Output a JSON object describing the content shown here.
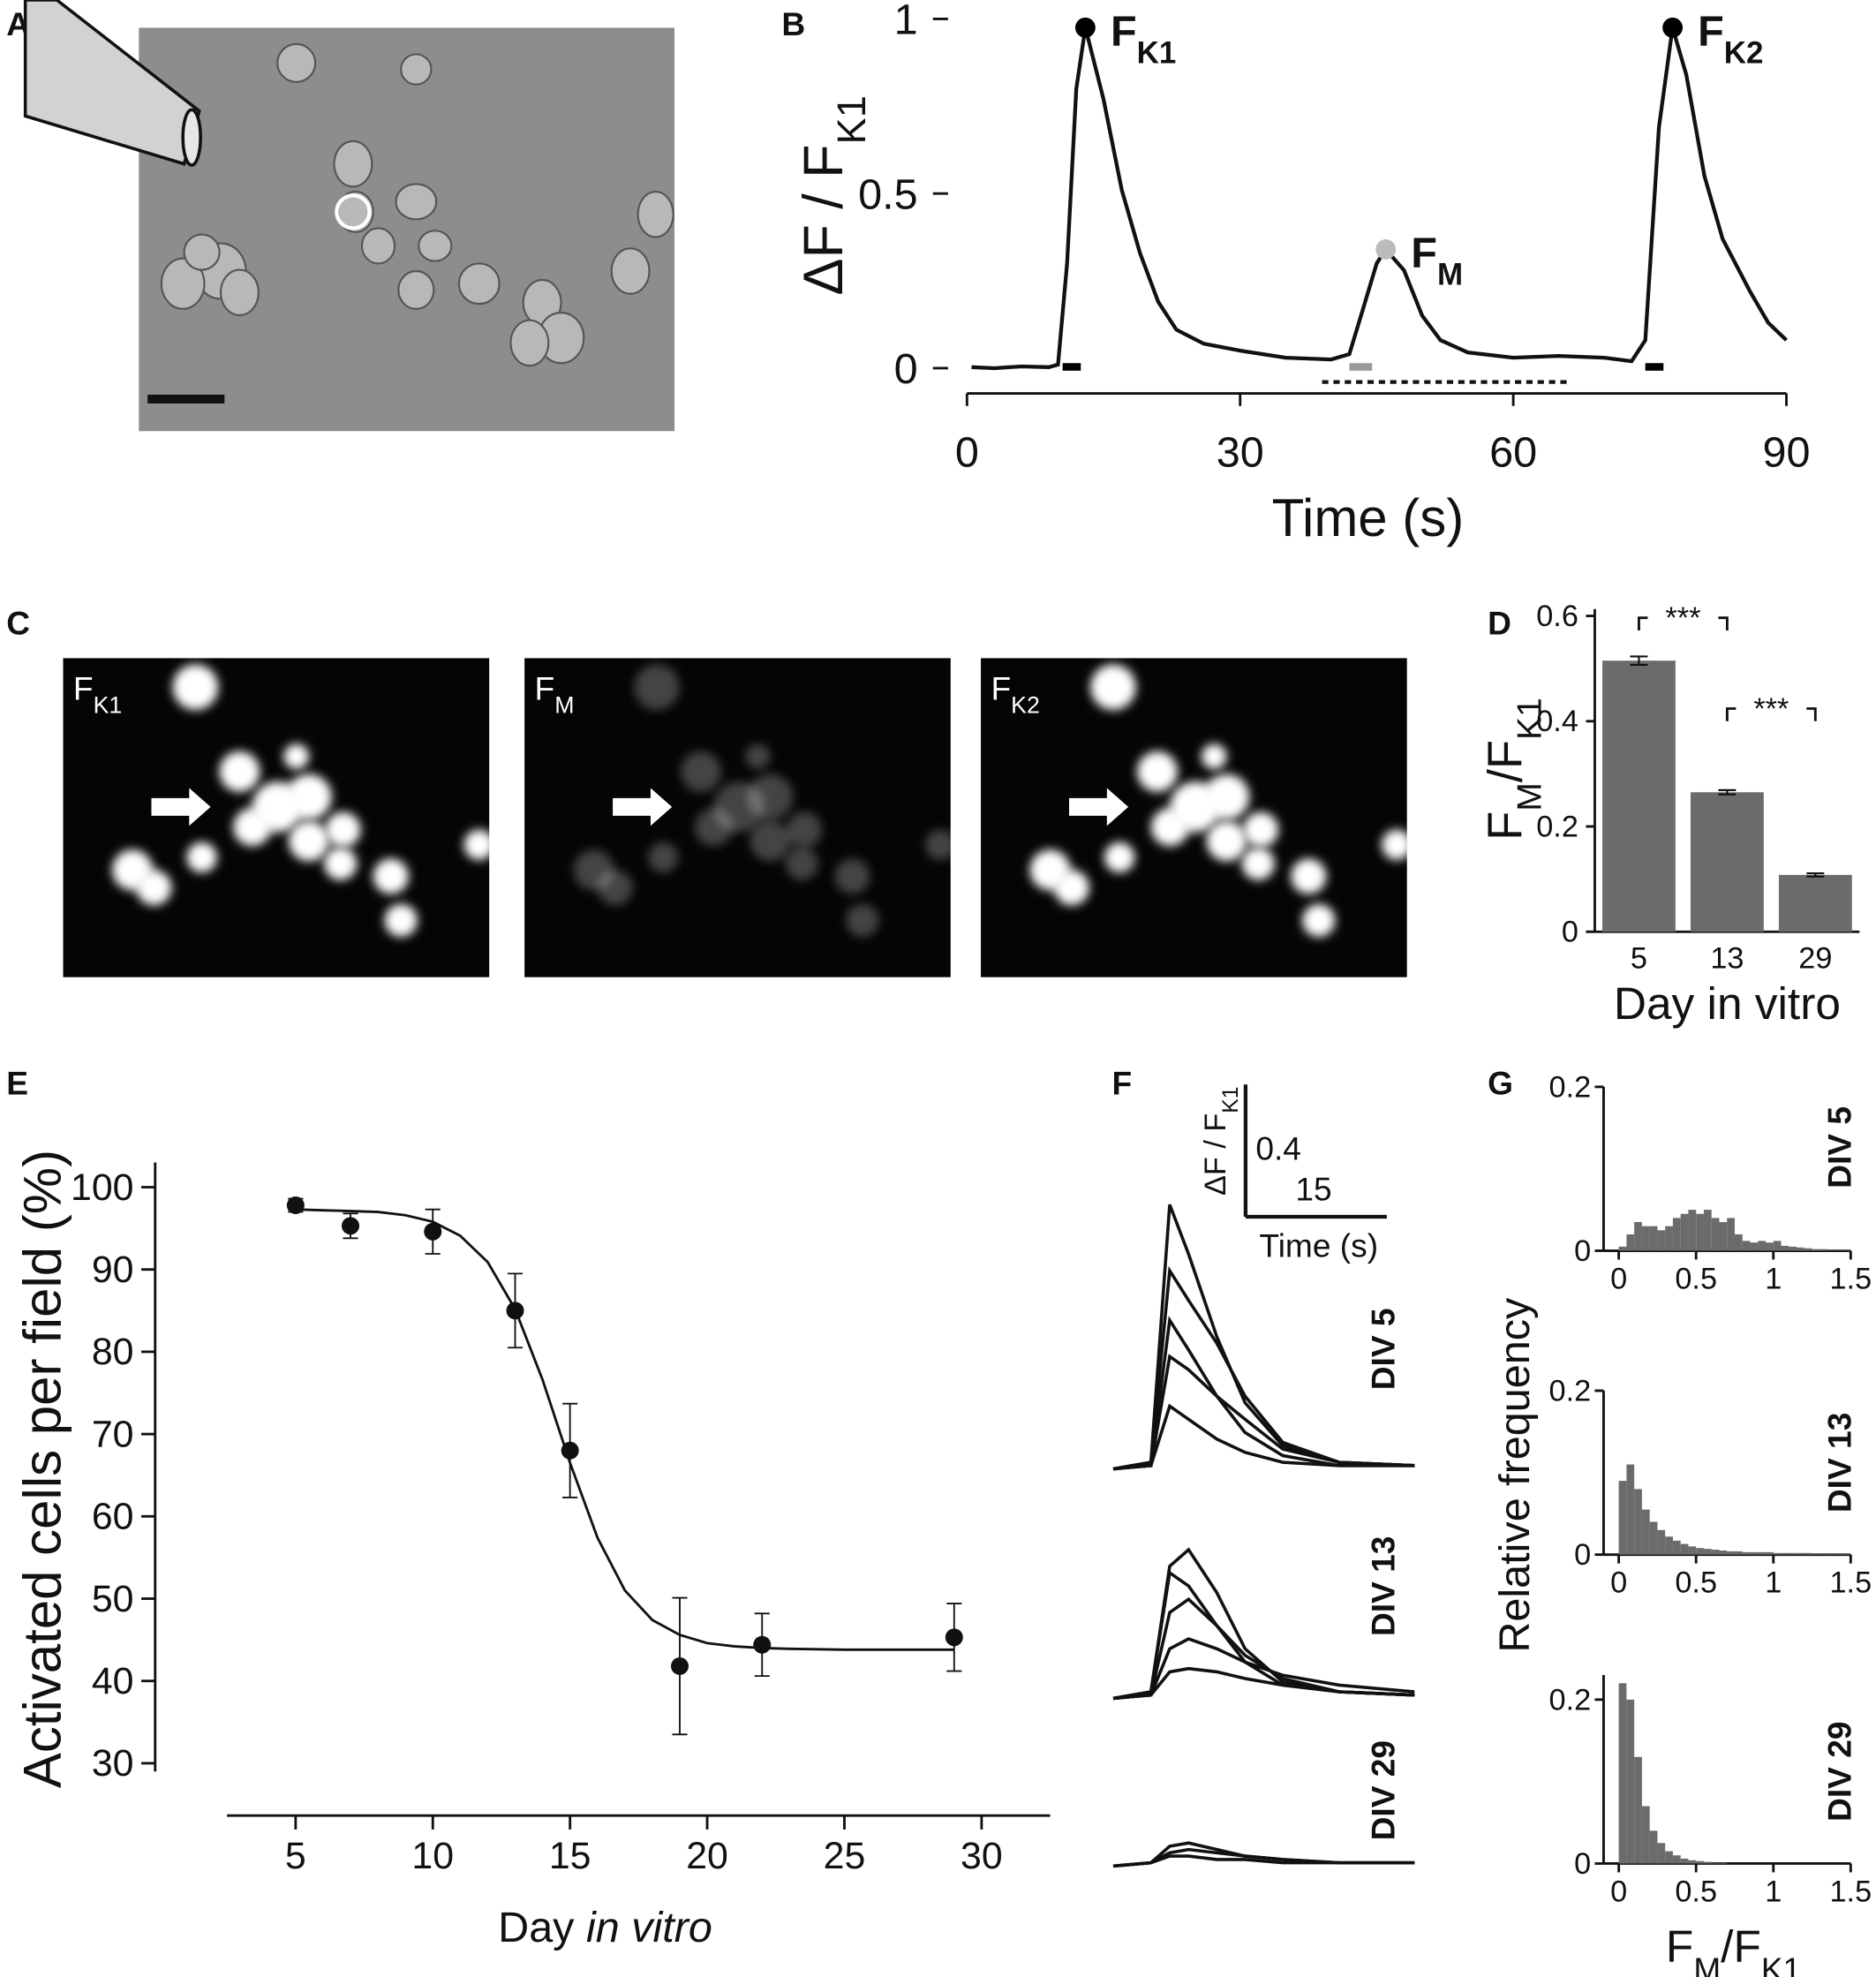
{
  "panel_labels": [
    "A",
    "B",
    "C",
    "D",
    "E",
    "F",
    "G"
  ],
  "image_labels": [
    {
      "parts": [
        "F",
        "K1"
      ]
    },
    {
      "parts": [
        "F",
        "M"
      ]
    },
    {
      "parts": [
        "F",
        "K2"
      ]
    }
  ],
  "chart_data": [
    {
      "type": "line",
      "xlabel": "Time (s)",
      "ylabel": {
        "parts": [
          "ΔF / F",
          "K1"
        ]
      },
      "xlim": [
        0,
        90
      ],
      "ylim": [
        0,
        1
      ],
      "xticks": [
        0,
        30,
        60,
        90
      ],
      "yticks": [
        0,
        0.5,
        1
      ],
      "x": [
        0.5,
        3,
        6,
        9,
        10,
        11,
        12,
        13,
        15,
        17,
        19,
        21,
        23,
        26,
        30,
        35,
        40,
        42,
        43.5,
        45,
        46,
        48,
        50,
        52,
        55,
        60,
        65,
        70,
        73,
        74.5,
        76,
        77.5,
        79,
        81,
        83,
        86,
        88,
        90
      ],
      "values": [
        0.003,
        0,
        0.005,
        0.003,
        0.01,
        0.3,
        0.8,
        0.975,
        0.77,
        0.51,
        0.33,
        0.19,
        0.11,
        0.07,
        0.05,
        0.03,
        0.025,
        0.04,
        0.17,
        0.3,
        0.34,
        0.28,
        0.15,
        0.08,
        0.045,
        0.03,
        0.035,
        0.03,
        0.02,
        0.08,
        0.69,
        0.975,
        0.84,
        0.55,
        0.37,
        0.22,
        0.13,
        0.08
      ],
      "color": "#111111",
      "peaks": [
        {
          "parts": [
            "F",
            "K1"
          ],
          "x": 13,
          "y": 0.975,
          "color": "#000000"
        },
        {
          "parts": [
            "F",
            "M"
          ],
          "x": 46,
          "y": 0.34,
          "color": "#bbbbbb"
        },
        {
          "parts": [
            "F",
            "K2"
          ],
          "x": 77.5,
          "y": 0.975,
          "color": "#000000"
        }
      ],
      "stimuli": [
        {
          "start": 10.5,
          "end": 12.5,
          "color": "#000000"
        },
        {
          "start": 42,
          "end": 44.5,
          "color": "#999999"
        },
        {
          "start": 74.5,
          "end": 76.5,
          "color": "#000000"
        }
      ],
      "perfusion": {
        "start": 39,
        "end": 66
      }
    },
    {
      "type": "bar",
      "xlabel": "Day in vitro",
      "ylabel": {
        "parts": [
          "F",
          "M",
          "/F",
          "K1"
        ]
      },
      "categories": [
        "5",
        "13",
        "29"
      ],
      "values": [
        0.515,
        0.265,
        0.108
      ],
      "errors": [
        0.008,
        0.004,
        0.003
      ],
      "color": "#6b6b6b",
      "ylim": [
        0,
        0.6
      ],
      "yticks": [
        0,
        0.2,
        0.4,
        0.6
      ],
      "significance": [
        {
          "text": "***",
          "from": 0,
          "to": 1
        },
        {
          "text": "***",
          "from": 1,
          "to": 2
        }
      ]
    },
    {
      "type": "scatter",
      "xlabel": {
        "parts": [
          "Day ",
          "in vitro"
        ]
      },
      "ylabel": "Activated cells per field (%)",
      "x": [
        5,
        7,
        10,
        13,
        15,
        19,
        22,
        29
      ],
      "values": [
        97.8,
        95.3,
        94.6,
        85,
        68,
        41.8,
        44.4,
        45.3
      ],
      "errors": [
        0.8,
        1.5,
        2.7,
        4.5,
        5.7,
        8.3,
        3.8,
        4.1
      ],
      "color": "#111111",
      "fit": {
        "x": [
          5,
          6,
          7,
          8,
          9,
          10,
          11,
          12,
          13,
          14,
          15,
          16,
          17,
          18,
          19,
          20,
          21,
          22,
          23,
          25,
          27,
          29
        ],
        "values": [
          97.3,
          97.2,
          97.1,
          97,
          96.6,
          95.8,
          94.1,
          90.9,
          85.2,
          76.6,
          66.5,
          57.4,
          51,
          47.4,
          45.6,
          44.6,
          44.2,
          44,
          43.9,
          43.8,
          43.8,
          43.8
        ]
      },
      "xlim": [
        2.5,
        32.5
      ],
      "ylim": [
        29,
        103
      ],
      "xticks": [
        5,
        10,
        15,
        20,
        25,
        30
      ],
      "yticks": [
        30,
        40,
        50,
        60,
        70,
        80,
        90,
        100
      ]
    },
    {
      "type": "traces",
      "color": "#111111",
      "x": [
        0,
        4,
        6,
        8,
        11,
        14,
        18,
        24,
        32
      ],
      "groups": [
        {
          "label": "DIV 5",
          "series": [
            {
              "values": [
                0,
                0.02,
                0.8,
                0.65,
                0.4,
                0.2,
                0.07,
                0.02,
                0.01
              ]
            },
            {
              "values": [
                0,
                0.02,
                0.6,
                0.51,
                0.38,
                0.22,
                0.08,
                0.02,
                0.01
              ]
            },
            {
              "values": [
                0,
                0.01,
                0.45,
                0.36,
                0.22,
                0.11,
                0.04,
                0.01,
                0.01
              ]
            },
            {
              "values": [
                0,
                0.01,
                0.34,
                0.3,
                0.22,
                0.15,
                0.06,
                0.02,
                0.01
              ]
            },
            {
              "values": [
                0,
                0.01,
                0.19,
                0.15,
                0.09,
                0.05,
                0.02,
                0.01,
                0.01
              ]
            }
          ]
        },
        {
          "label": "DIV 13",
          "series": [
            {
              "values": [
                0,
                0.02,
                0.4,
                0.45,
                0.32,
                0.15,
                0.05,
                0.02,
                0.01
              ]
            },
            {
              "values": [
                0,
                0.02,
                0.38,
                0.34,
                0.22,
                0.11,
                0.04,
                0.02,
                0.01
              ]
            },
            {
              "values": [
                0,
                0.01,
                0.26,
                0.3,
                0.22,
                0.13,
                0.06,
                0.02,
                0.01
              ]
            },
            {
              "values": [
                0,
                0.01,
                0.15,
                0.18,
                0.15,
                0.11,
                0.07,
                0.04,
                0.02
              ]
            },
            {
              "values": [
                0,
                0.01,
                0.08,
                0.09,
                0.08,
                0.06,
                0.04,
                0.02,
                0.01
              ]
            }
          ]
        },
        {
          "label": "DIV 29",
          "series": [
            {
              "values": [
                0,
                0.01,
                0.06,
                0.07,
                0.05,
                0.03,
                0.02,
                0.01,
                0.01
              ]
            },
            {
              "values": [
                0,
                0.01,
                0.04,
                0.05,
                0.04,
                0.03,
                0.02,
                0.01,
                0.01
              ]
            },
            {
              "values": [
                0,
                0.01,
                0.03,
                0.03,
                0.02,
                0.02,
                0.01,
                0.01,
                0.01
              ]
            }
          ]
        }
      ],
      "scalebar": {
        "y": 0.4,
        "x": 15,
        "ylabel": {
          "parts": [
            "ΔF / F",
            "K1"
          ]
        },
        "xlabel": "Time (s)"
      }
    },
    {
      "type": "histogram",
      "label": "DIV 5",
      "color": "#6b6b6b",
      "bins": [
        0,
        0.05,
        0.1,
        0.15,
        0.2,
        0.25,
        0.3,
        0.35,
        0.4,
        0.45,
        0.5,
        0.55,
        0.6,
        0.65,
        0.7,
        0.75,
        0.8,
        0.85,
        0.9,
        0.95,
        1,
        1.05,
        1.1,
        1.15,
        1.2,
        1.25,
        1.3,
        1.35,
        1.4,
        1.45,
        1.5
      ],
      "values": [
        0.005,
        0.02,
        0.035,
        0.03,
        0.03,
        0.025,
        0.03,
        0.04,
        0.045,
        0.05,
        0.045,
        0.05,
        0.04,
        0.035,
        0.04,
        0.02,
        0.012,
        0.01,
        0.012,
        0.01,
        0.012,
        0.006,
        0.005,
        0.004,
        0.003,
        0.002,
        0.002,
        0.001,
        0.001,
        0.001
      ],
      "xlim": [
        -0.05,
        1.5
      ],
      "ylim": [
        0,
        0.2
      ],
      "xticks": [
        0,
        0.5,
        1,
        1.5
      ],
      "yticks": [
        0,
        0.2
      ]
    },
    {
      "type": "histogram",
      "label": "DIV 13",
      "color": "#6b6b6b",
      "ylabel": "Relative frequency",
      "bins": [
        0,
        0.05,
        0.1,
        0.15,
        0.2,
        0.25,
        0.3,
        0.35,
        0.4,
        0.45,
        0.5,
        0.55,
        0.6,
        0.65,
        0.7,
        0.75,
        0.8,
        0.85,
        0.9,
        0.95,
        1,
        1.05,
        1.1,
        1.15,
        1.2,
        1.25,
        1.3,
        1.35,
        1.4,
        1.45,
        1.5
      ],
      "values": [
        0.09,
        0.11,
        0.08,
        0.055,
        0.04,
        0.03,
        0.022,
        0.017,
        0.013,
        0.01,
        0.008,
        0.007,
        0.006,
        0.005,
        0.004,
        0.004,
        0.003,
        0.003,
        0.003,
        0.003,
        0.002,
        0.002,
        0.002,
        0.002,
        0.002,
        0.001,
        0.001,
        0.001,
        0.001,
        0.001
      ],
      "xlim": [
        -0.05,
        1.5
      ],
      "ylim": [
        0,
        0.2
      ],
      "xticks": [
        0,
        0.5,
        1,
        1.5
      ],
      "yticks": [
        0,
        0.2
      ]
    },
    {
      "type": "histogram",
      "label": "DIV 29",
      "color": "#6b6b6b",
      "xlabel": {
        "parts": [
          "F",
          "M",
          "/F",
          "K1"
        ]
      },
      "bins": [
        0,
        0.05,
        0.1,
        0.15,
        0.2,
        0.25,
        0.3,
        0.35,
        0.4,
        0.45,
        0.5,
        0.55,
        0.6,
        0.65,
        0.7,
        0.75,
        0.8,
        0.85,
        0.9,
        0.95,
        1,
        1.05,
        1.1,
        1.15,
        1.2,
        1.25,
        1.3,
        1.35,
        1.4,
        1.45,
        1.5
      ],
      "values": [
        0.22,
        0.2,
        0.13,
        0.07,
        0.04,
        0.025,
        0.015,
        0.01,
        0.006,
        0.004,
        0.003,
        0.002,
        0.001,
        0.001,
        0,
        0,
        0,
        0,
        0,
        0,
        0,
        0,
        0,
        0,
        0,
        0,
        0,
        0,
        0,
        0
      ],
      "xlim": [
        -0.05,
        1.5
      ],
      "ylim": [
        0,
        0.23
      ],
      "xticks": [
        0,
        0.5,
        1,
        1.5
      ],
      "yticks": [
        0,
        0.2
      ]
    }
  ]
}
